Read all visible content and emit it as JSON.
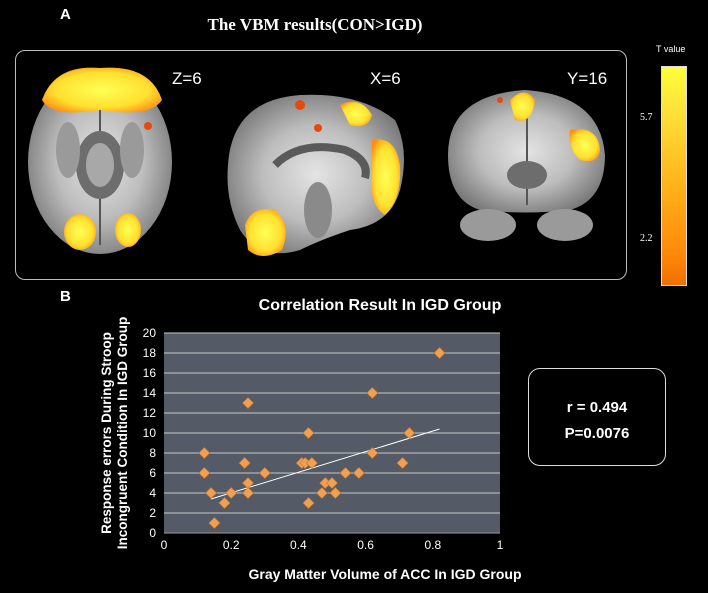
{
  "panel_a": {
    "letter": "A",
    "title": "The VBM results(CON>IGD)",
    "slices": [
      {
        "label": "Z=6"
      },
      {
        "label": "X=6"
      },
      {
        "label": "Y=16"
      }
    ],
    "colorbar": {
      "title": "T  value",
      "max_label": "5.7",
      "min_label": "2.2",
      "colors": [
        "#ffff3a",
        "#ff8a0a",
        "#f07000"
      ]
    }
  },
  "panel_b": {
    "letter": "B",
    "stats": {
      "r": "r = 0.494",
      "p": "P=0.0076"
    }
  },
  "chart_data": {
    "type": "scatter",
    "title": "Correlation Result In IGD Group",
    "xlabel": "Gray Matter Volume of ACC In IGD Group",
    "ylabel": [
      "Response errors During Stroop",
      "Incongruent Condition In IGD Group"
    ],
    "xlim": [
      0,
      1
    ],
    "ylim": [
      0,
      20
    ],
    "xticks": [
      0,
      0.2,
      0.4,
      0.6,
      0.8,
      1
    ],
    "yticks": [
      0,
      2,
      4,
      6,
      8,
      10,
      12,
      14,
      16,
      18,
      20
    ],
    "grid": true,
    "marker_color": "#f0a050",
    "plot_bg": "#555b66",
    "points": [
      [
        0.12,
        8
      ],
      [
        0.12,
        6
      ],
      [
        0.14,
        4
      ],
      [
        0.15,
        1
      ],
      [
        0.18,
        3
      ],
      [
        0.2,
        4
      ],
      [
        0.24,
        7
      ],
      [
        0.25,
        5
      ],
      [
        0.25,
        4
      ],
      [
        0.25,
        13
      ],
      [
        0.3,
        6
      ],
      [
        0.41,
        7
      ],
      [
        0.42,
        7
      ],
      [
        0.43,
        10
      ],
      [
        0.44,
        7
      ],
      [
        0.43,
        3
      ],
      [
        0.47,
        4
      ],
      [
        0.48,
        5
      ],
      [
        0.5,
        5
      ],
      [
        0.51,
        4
      ],
      [
        0.54,
        6
      ],
      [
        0.58,
        6
      ],
      [
        0.62,
        8
      ],
      [
        0.62,
        14
      ],
      [
        0.71,
        7
      ],
      [
        0.73,
        10
      ],
      [
        0.82,
        18
      ]
    ],
    "trendline": {
      "x": [
        0.14,
        0.82
      ],
      "y": [
        3.4,
        10.4
      ]
    }
  }
}
